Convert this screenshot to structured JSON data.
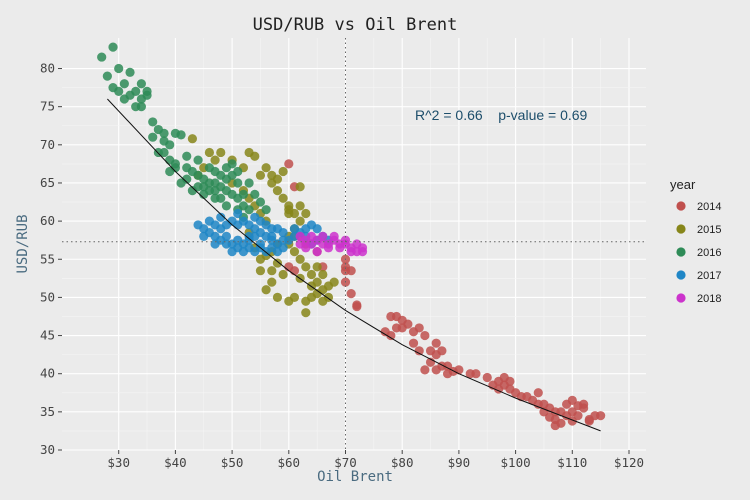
{
  "chart_data": {
    "type": "scatter",
    "title": "USD/RUB vs Oil Brent",
    "xlabel": "Oil Brent",
    "ylabel": "USD/RUB",
    "xlim": [
      20,
      123
    ],
    "ylim": [
      30,
      84
    ],
    "x_ticks": [
      30,
      40,
      50,
      60,
      70,
      80,
      90,
      100,
      110,
      120
    ],
    "x_tick_labels": [
      "$30",
      "$40",
      "$50",
      "$60",
      "$70",
      "$80",
      "$90",
      "$100",
      "$110",
      "$120"
    ],
    "y_ticks": [
      30,
      35,
      40,
      45,
      50,
      55,
      60,
      65,
      70,
      75,
      80
    ],
    "y_tick_labels": [
      "30",
      "35",
      "40",
      "45",
      "50",
      "55",
      "60",
      "65",
      "70",
      "75",
      "80"
    ],
    "annotation": "R^2 = 0.66    p-value = 0.69",
    "reference_lines": {
      "vertical_x": 70,
      "horizontal_y": 57.3
    },
    "trend_line": [
      [
        28,
        76
      ],
      [
        40,
        66.5
      ],
      [
        50,
        59.5
      ],
      [
        60,
        53.5
      ],
      [
        70,
        48.3
      ],
      [
        80,
        43.8
      ],
      [
        90,
        40
      ],
      [
        100,
        36.8
      ],
      [
        115,
        32.5
      ]
    ],
    "grid": true,
    "legend_title": "year",
    "legend_position": "right",
    "series": [
      {
        "name": "2014",
        "color": "#c0504d",
        "points": [
          [
            110,
            35
          ],
          [
            111,
            34.5
          ],
          [
            108,
            33.5
          ],
          [
            107,
            34
          ],
          [
            112,
            35.5
          ],
          [
            109,
            36
          ],
          [
            110,
            36.5
          ],
          [
            113,
            34
          ],
          [
            114,
            34.5
          ],
          [
            108,
            35
          ],
          [
            106,
            35.5
          ],
          [
            105,
            36
          ],
          [
            103,
            36.5
          ],
          [
            104,
            36
          ],
          [
            101,
            37
          ],
          [
            100,
            37.5
          ],
          [
            99,
            38
          ],
          [
            98,
            38.5
          ],
          [
            97,
            39
          ],
          [
            98,
            39.5
          ],
          [
            96,
            38.5
          ],
          [
            95,
            39.5
          ],
          [
            93,
            40
          ],
          [
            92,
            40
          ],
          [
            90,
            40.5
          ],
          [
            88,
            41
          ],
          [
            87,
            41
          ],
          [
            86,
            40.5
          ],
          [
            85,
            41.5
          ],
          [
            86,
            42.5
          ],
          [
            87,
            43
          ],
          [
            86,
            44
          ],
          [
            84,
            45
          ],
          [
            83,
            46
          ],
          [
            82,
            45.5
          ],
          [
            81,
            46.5
          ],
          [
            80,
            47
          ],
          [
            79,
            47.5
          ],
          [
            78,
            47.5
          ],
          [
            79,
            46
          ],
          [
            78,
            45
          ],
          [
            77,
            45.5
          ],
          [
            72,
            49
          ],
          [
            71,
            50.5
          ],
          [
            70,
            52
          ],
          [
            70,
            53.5
          ],
          [
            70,
            54
          ],
          [
            70,
            55
          ],
          [
            71,
            53.5
          ],
          [
            72,
            48.8
          ],
          [
            66,
            54
          ],
          [
            65,
            56
          ],
          [
            63,
            57
          ],
          [
            62,
            58
          ],
          [
            61,
            64.5
          ],
          [
            60,
            67.5
          ],
          [
            61,
            53.5
          ],
          [
            60,
            54
          ],
          [
            104,
            37.5
          ],
          [
            107,
            35
          ],
          [
            112,
            36
          ],
          [
            109,
            34.5
          ],
          [
            113,
            33.8
          ],
          [
            115,
            34.5
          ],
          [
            102,
            37
          ],
          [
            99,
            39
          ],
          [
            97,
            38
          ],
          [
            89,
            40.3
          ],
          [
            88,
            40
          ],
          [
            84,
            40.5
          ],
          [
            83,
            43
          ],
          [
            82,
            44
          ],
          [
            85,
            43
          ],
          [
            80,
            46
          ],
          [
            107,
            33.2
          ],
          [
            110,
            33.8
          ],
          [
            111,
            35.8
          ],
          [
            105,
            35
          ],
          [
            106,
            34.3
          ]
        ]
      },
      {
        "name": "2015",
        "color": "#87861a",
        "points": [
          [
            48,
            69
          ],
          [
            50,
            68
          ],
          [
            52,
            67
          ],
          [
            55,
            66
          ],
          [
            57,
            65
          ],
          [
            58,
            64
          ],
          [
            59,
            63
          ],
          [
            60,
            62
          ],
          [
            61,
            61
          ],
          [
            62,
            62
          ],
          [
            63,
            61
          ],
          [
            62,
            60
          ],
          [
            61,
            59
          ],
          [
            60,
            58
          ],
          [
            58,
            57
          ],
          [
            57,
            56
          ],
          [
            56,
            55.5
          ],
          [
            55,
            55
          ],
          [
            57,
            52
          ],
          [
            56,
            51
          ],
          [
            58,
            50
          ],
          [
            60,
            49.5
          ],
          [
            63,
            49.5
          ],
          [
            64,
            50
          ],
          [
            65,
            50.5
          ],
          [
            66,
            51
          ],
          [
            67,
            51.5
          ],
          [
            68,
            52
          ],
          [
            66,
            49.5
          ],
          [
            65,
            52
          ],
          [
            64,
            53
          ],
          [
            63,
            54
          ],
          [
            62,
            55
          ],
          [
            61,
            56
          ],
          [
            60,
            57
          ],
          [
            53,
            69
          ],
          [
            54,
            68.5
          ],
          [
            56,
            67
          ],
          [
            57,
            66
          ],
          [
            59,
            66.5
          ],
          [
            58,
            65.5
          ],
          [
            46,
            69
          ],
          [
            47,
            68
          ],
          [
            44,
            66
          ],
          [
            45,
            67
          ],
          [
            43,
            70.8
          ],
          [
            50,
            65
          ],
          [
            52,
            64
          ],
          [
            53,
            63
          ],
          [
            54,
            62
          ],
          [
            55,
            61
          ],
          [
            56,
            60
          ],
          [
            62,
            64.5
          ],
          [
            60,
            61
          ],
          [
            66,
            53
          ],
          [
            67,
            50
          ],
          [
            64,
            51.5
          ],
          [
            63,
            48
          ],
          [
            61,
            50
          ],
          [
            62,
            52.5
          ],
          [
            65,
            54
          ],
          [
            57,
            53.5
          ],
          [
            55,
            53.5
          ],
          [
            53,
            58.5
          ],
          [
            54,
            56.5
          ],
          [
            58,
            54.5
          ],
          [
            59,
            53
          ],
          [
            60,
            61.5
          ],
          [
            61,
            58
          ]
        ]
      },
      {
        "name": "2016",
        "color": "#2e8b57",
        "points": [
          [
            27,
            81.5
          ],
          [
            29,
            82.8
          ],
          [
            28,
            79
          ],
          [
            30,
            80
          ],
          [
            31,
            78
          ],
          [
            32,
            79.5
          ],
          [
            33,
            77
          ],
          [
            34,
            76
          ],
          [
            35,
            76.5
          ],
          [
            30,
            77
          ],
          [
            31,
            76
          ],
          [
            34,
            78
          ],
          [
            35,
            77
          ],
          [
            36,
            73
          ],
          [
            37,
            72
          ],
          [
            38,
            71.5
          ],
          [
            36,
            71
          ],
          [
            39,
            70
          ],
          [
            40,
            71.5
          ],
          [
            41,
            71.3
          ],
          [
            38,
            69
          ],
          [
            39,
            68
          ],
          [
            40,
            67.5
          ],
          [
            42,
            67
          ],
          [
            43,
            66.5
          ],
          [
            44,
            66
          ],
          [
            45,
            65.5
          ],
          [
            46,
            65
          ],
          [
            47,
            65
          ],
          [
            48,
            64.5
          ],
          [
            49,
            64
          ],
          [
            50,
            63.5
          ],
          [
            51,
            63
          ],
          [
            52,
            62
          ],
          [
            53,
            61.5
          ],
          [
            50,
            66
          ],
          [
            51,
            65
          ],
          [
            48,
            66
          ],
          [
            52,
            63.5
          ],
          [
            49,
            62
          ],
          [
            47,
            63
          ],
          [
            46,
            64
          ],
          [
            45,
            63.5
          ],
          [
            44,
            64.5
          ],
          [
            43,
            64
          ],
          [
            41,
            65
          ],
          [
            42,
            65.5
          ],
          [
            40,
            67
          ],
          [
            39,
            66.5
          ],
          [
            37,
            69
          ],
          [
            38,
            70.5
          ],
          [
            33,
            75
          ],
          [
            34,
            75
          ],
          [
            29,
            77.5
          ],
          [
            32,
            76.5
          ],
          [
            42,
            68.5
          ],
          [
            44,
            68
          ],
          [
            46,
            67
          ],
          [
            47,
            66.5
          ],
          [
            49,
            67
          ],
          [
            50,
            67.5
          ],
          [
            51,
            66.5
          ],
          [
            53,
            65
          ],
          [
            54,
            63.5
          ],
          [
            55,
            62.5
          ],
          [
            56,
            61.5
          ],
          [
            49,
            65.5
          ],
          [
            48,
            63
          ],
          [
            45,
            64.5
          ],
          [
            47,
            64
          ],
          [
            52,
            60.5
          ],
          [
            51,
            61.5
          ]
        ]
      },
      {
        "name": "2017",
        "color": "#1f86c6",
        "points": [
          [
            45,
            59
          ],
          [
            46,
            58.5
          ],
          [
            47,
            58
          ],
          [
            48,
            57.5
          ],
          [
            49,
            57
          ],
          [
            50,
            57
          ],
          [
            51,
            57.5
          ],
          [
            52,
            57
          ],
          [
            53,
            57.5
          ],
          [
            54,
            58
          ],
          [
            55,
            58.5
          ],
          [
            56,
            58
          ],
          [
            57,
            57.5
          ],
          [
            58,
            57
          ],
          [
            59,
            57.5
          ],
          [
            60,
            57.5
          ],
          [
            61,
            58
          ],
          [
            62,
            58.5
          ],
          [
            63,
            59
          ],
          [
            64,
            59.5
          ],
          [
            65,
            59
          ],
          [
            66,
            58
          ],
          [
            67,
            57.5
          ],
          [
            46,
            60
          ],
          [
            47,
            59.5
          ],
          [
            48,
            59
          ],
          [
            49,
            59.5
          ],
          [
            50,
            60
          ],
          [
            51,
            59.5
          ],
          [
            52,
            60
          ],
          [
            53,
            59.5
          ],
          [
            54,
            59
          ],
          [
            55,
            60
          ],
          [
            56,
            59.5
          ],
          [
            57,
            59
          ],
          [
            58,
            59
          ],
          [
            50,
            56
          ],
          [
            51,
            56.5
          ],
          [
            52,
            56
          ],
          [
            53,
            56.5
          ],
          [
            54,
            56
          ],
          [
            55,
            56.5
          ],
          [
            56,
            56
          ],
          [
            57,
            56.5
          ],
          [
            58,
            56
          ],
          [
            59,
            56.5
          ],
          [
            45,
            58
          ],
          [
            44,
            59.5
          ],
          [
            47,
            57
          ],
          [
            49,
            58
          ],
          [
            53,
            58
          ],
          [
            55,
            57
          ],
          [
            57,
            58
          ],
          [
            59,
            58.5
          ],
          [
            61,
            59
          ],
          [
            63,
            58
          ],
          [
            64,
            57
          ],
          [
            65,
            57.5
          ],
          [
            48,
            60.5
          ],
          [
            51,
            61
          ],
          [
            54,
            60.5
          ]
        ]
      },
      {
        "name": "2018",
        "color": "#cc33cc",
        "points": [
          [
            62,
            58
          ],
          [
            63,
            57.5
          ],
          [
            64,
            57
          ],
          [
            65,
            57.5
          ],
          [
            66,
            57
          ],
          [
            67,
            57
          ],
          [
            68,
            57.5
          ],
          [
            69,
            57
          ],
          [
            70,
            57
          ],
          [
            71,
            56.5
          ],
          [
            72,
            57
          ],
          [
            73,
            56.5
          ],
          [
            73,
            56
          ],
          [
            71,
            56
          ],
          [
            69,
            56.5
          ],
          [
            67,
            56.5
          ],
          [
            65,
            56
          ],
          [
            63,
            56.5
          ],
          [
            64,
            58
          ],
          [
            66,
            58
          ],
          [
            68,
            58
          ],
          [
            70,
            57.5
          ],
          [
            72,
            56
          ],
          [
            62,
            57
          ]
        ]
      }
    ]
  }
}
